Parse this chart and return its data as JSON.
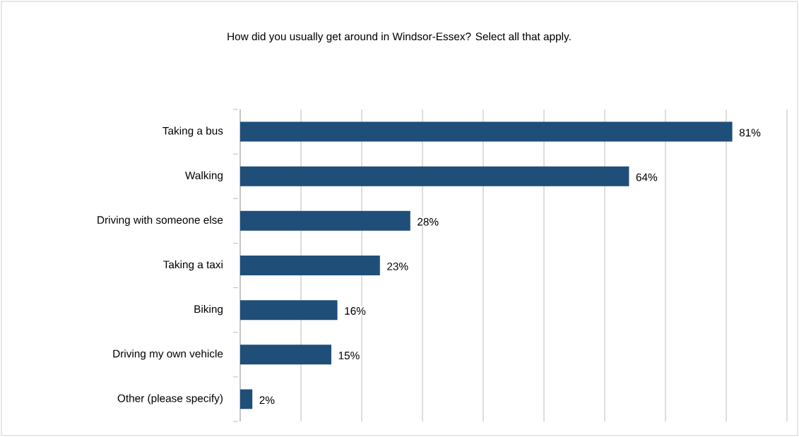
{
  "chart_data": {
    "type": "bar",
    "orientation": "horizontal",
    "title": "How did you usually get around in Windsor-Essex? Select all that apply.",
    "categories": [
      "Taking a bus",
      "Walking",
      "Driving with someone else",
      "Taking a taxi",
      "Biking",
      "Driving my own vehicle",
      "Other (please specify)"
    ],
    "values": [
      81,
      64,
      28,
      23,
      16,
      15,
      2
    ],
    "value_labels": [
      "81%",
      "64%",
      "28%",
      "23%",
      "16%",
      "15%",
      "2%"
    ],
    "color": "#1f4e79",
    "xlim": [
      0,
      90
    ],
    "xticks": [
      {
        "value": 0,
        "label": null
      },
      {
        "value": 10,
        "label": null
      },
      {
        "value": 20,
        "label": null
      },
      {
        "value": 30,
        "label": null
      },
      {
        "value": 40,
        "label": null
      },
      {
        "value": 50,
        "label": null
      },
      {
        "value": 60,
        "label": null
      },
      {
        "value": 70,
        "label": null
      },
      {
        "value": 80,
        "label": null
      },
      {
        "value": 90,
        "label": null
      }
    ],
    "grid": "x",
    "tick_labels": "y"
  }
}
